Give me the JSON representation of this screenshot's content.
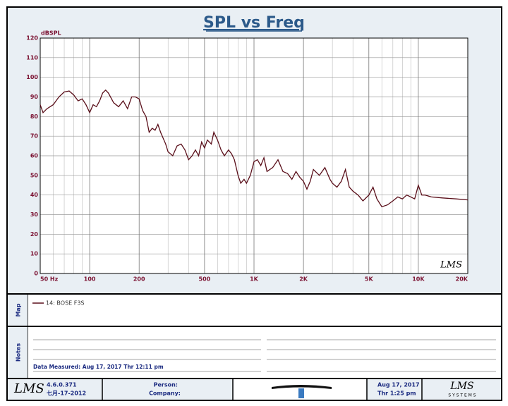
{
  "chart_data": {
    "type": "line",
    "title": "SPL vs Freq",
    "y_label": "dBSPL",
    "x": [
      50,
      52,
      55,
      60,
      65,
      70,
      75,
      80,
      85,
      90,
      95,
      100,
      105,
      110,
      115,
      120,
      125,
      130,
      140,
      150,
      160,
      170,
      180,
      190,
      200,
      210,
      220,
      230,
      240,
      250,
      260,
      270,
      290,
      300,
      320,
      340,
      360,
      380,
      400,
      420,
      440,
      460,
      480,
      500,
      520,
      550,
      570,
      600,
      630,
      660,
      700,
      730,
      760,
      800,
      830,
      870,
      900,
      950,
      1000,
      1050,
      1100,
      1150,
      1200,
      1300,
      1400,
      1500,
      1600,
      1700,
      1800,
      1900,
      2000,
      2100,
      2200,
      2300,
      2500,
      2700,
      2900,
      3000,
      3200,
      3400,
      3600,
      3800,
      4000,
      4300,
      4600,
      5000,
      5300,
      5600,
      6000,
      6500,
      7000,
      7500,
      8000,
      8500,
      9000,
      9500,
      10000,
      10500,
      11000,
      12000,
      14000,
      17000,
      20000
    ],
    "series": [
      {
        "name": "14: BOSE F3S",
        "color": "#5a0f1a",
        "values": [
          86,
          82,
          84,
          86,
          90,
          92.5,
          93,
          91,
          88,
          89,
          86,
          82,
          86,
          85,
          88,
          92,
          93.5,
          92,
          87,
          85,
          88,
          84,
          90,
          90,
          89,
          83,
          80,
          72,
          74,
          73,
          76,
          72,
          66,
          62,
          60,
          65,
          66,
          63,
          58,
          60,
          63,
          60,
          67,
          64,
          68,
          66,
          72,
          68,
          63,
          60,
          63,
          61,
          58,
          50,
          46,
          48,
          46,
          50,
          57,
          58,
          55,
          59,
          52,
          54,
          58,
          52,
          51,
          48,
          52,
          49,
          47,
          43,
          47,
          53,
          50,
          54,
          48,
          46,
          44,
          47,
          53,
          44,
          42,
          40,
          37,
          40,
          44,
          38,
          34,
          35,
          37,
          39,
          38,
          40,
          39,
          38,
          45,
          40,
          40,
          39,
          38.5,
          38,
          37.5
        ]
      }
    ],
    "xlim": [
      50,
      20000
    ],
    "log_x": true,
    "xticks": [
      {
        "value": 50,
        "label": "50  Hz"
      },
      100,
      200,
      500,
      {
        "value": 1000,
        "label": "1K"
      },
      {
        "value": 2000,
        "label": "2K"
      },
      {
        "value": 5000,
        "label": "5K"
      },
      {
        "value": 10000,
        "label": "10K"
      },
      {
        "value": 20000,
        "label": "20K"
      }
    ],
    "xminorticks": [
      60,
      70,
      80,
      90,
      300,
      400,
      600,
      700,
      800,
      900,
      3000,
      4000,
      6000,
      7000,
      8000,
      9000
    ],
    "ylim": [
      0,
      120
    ],
    "yticks": [
      0,
      10,
      20,
      30,
      40,
      50,
      60,
      70,
      80,
      90,
      100,
      110,
      120
    ],
    "grid": true,
    "logo": "LMS"
  },
  "panels": {
    "map_label": "Map",
    "notes_label": "Notes",
    "data_measured": "Data Measured: Aug 17, 2017  Thr 12:11 pm"
  },
  "footer": {
    "logo": "LMS",
    "version": "4.6.0.371",
    "date_code": "七月-17-2012",
    "person": "Person:",
    "company": "Company:",
    "date": "Aug 17, 2017",
    "time": "Thr 1:25 pm",
    "brand": "LMS",
    "brand_sub": "S Y S T E M S"
  }
}
